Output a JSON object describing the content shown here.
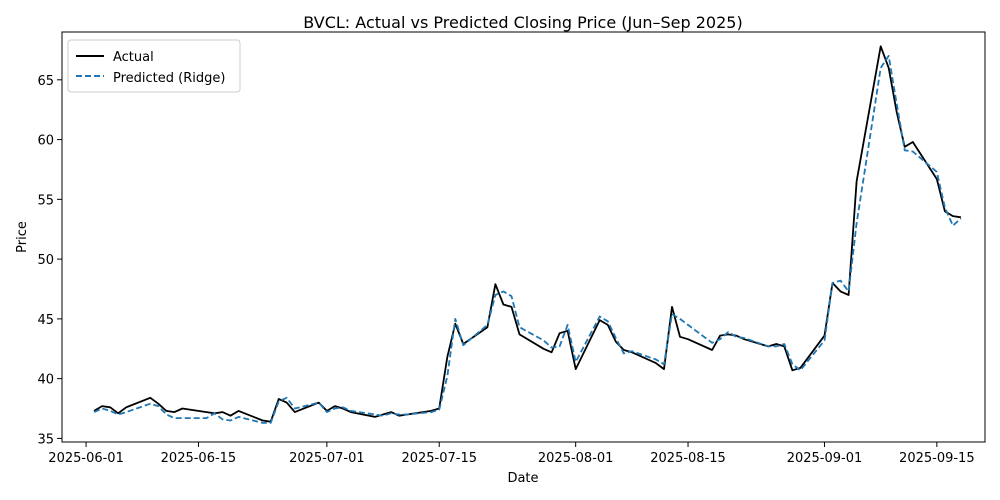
{
  "chart_data": {
    "type": "line",
    "title": "BVCL: Actual vs Predicted Closing Price (Jun–Sep 2025)",
    "xlabel": "Date",
    "ylabel": "Price",
    "ylim": [
      34.7,
      69.0
    ],
    "xlim": [
      "2025-05-29",
      "2025-09-21"
    ],
    "x_ticks": [
      "2025-06-01",
      "2025-06-15",
      "2025-07-01",
      "2025-07-15",
      "2025-08-01",
      "2025-08-15",
      "2025-09-01",
      "2025-09-15"
    ],
    "y_ticks": [
      35,
      40,
      45,
      50,
      55,
      60,
      65
    ],
    "grid": false,
    "legend_position": "top-left",
    "series": [
      {
        "name": "Actual",
        "color": "#000000",
        "style": "solid",
        "points": [
          [
            "2025-06-02",
            37.3
          ],
          [
            "2025-06-03",
            37.7
          ],
          [
            "2025-06-04",
            37.6
          ],
          [
            "2025-06-05",
            37.1
          ],
          [
            "2025-06-06",
            37.6
          ],
          [
            "2025-06-09",
            38.4
          ],
          [
            "2025-06-10",
            37.9
          ],
          [
            "2025-06-11",
            37.3
          ],
          [
            "2025-06-12",
            37.2
          ],
          [
            "2025-06-13",
            37.5
          ],
          [
            "2025-06-16",
            37.2
          ],
          [
            "2025-06-17",
            37.1
          ],
          [
            "2025-06-18",
            37.2
          ],
          [
            "2025-06-19",
            36.9
          ],
          [
            "2025-06-20",
            37.3
          ],
          [
            "2025-06-23",
            36.5
          ],
          [
            "2025-06-24",
            36.4
          ],
          [
            "2025-06-25",
            38.3
          ],
          [
            "2025-06-26",
            38.0
          ],
          [
            "2025-06-27",
            37.2
          ],
          [
            "2025-06-30",
            38.0
          ],
          [
            "2025-07-01",
            37.3
          ],
          [
            "2025-07-02",
            37.7
          ],
          [
            "2025-07-03",
            37.5
          ],
          [
            "2025-07-04",
            37.2
          ],
          [
            "2025-07-07",
            36.8
          ],
          [
            "2025-07-08",
            37.0
          ],
          [
            "2025-07-09",
            37.2
          ],
          [
            "2025-07-10",
            36.9
          ],
          [
            "2025-07-11",
            37.0
          ],
          [
            "2025-07-14",
            37.3
          ],
          [
            "2025-07-15",
            37.5
          ],
          [
            "2025-07-16",
            41.8
          ],
          [
            "2025-07-17",
            44.6
          ],
          [
            "2025-07-18",
            42.9
          ],
          [
            "2025-07-21",
            44.3
          ],
          [
            "2025-07-22",
            47.9
          ],
          [
            "2025-07-23",
            46.2
          ],
          [
            "2025-07-24",
            46.0
          ],
          [
            "2025-07-25",
            43.7
          ],
          [
            "2025-07-28",
            42.5
          ],
          [
            "2025-07-29",
            42.2
          ],
          [
            "2025-07-30",
            43.8
          ],
          [
            "2025-07-31",
            44.0
          ],
          [
            "2025-08-01",
            40.8
          ],
          [
            "2025-08-04",
            44.9
          ],
          [
            "2025-08-05",
            44.5
          ],
          [
            "2025-08-06",
            43.1
          ],
          [
            "2025-08-07",
            42.4
          ],
          [
            "2025-08-08",
            42.2
          ],
          [
            "2025-08-11",
            41.3
          ],
          [
            "2025-08-12",
            40.8
          ],
          [
            "2025-08-13",
            46.0
          ],
          [
            "2025-08-14",
            43.5
          ],
          [
            "2025-08-15",
            43.3
          ],
          [
            "2025-08-18",
            42.4
          ],
          [
            "2025-08-19",
            43.6
          ],
          [
            "2025-08-20",
            43.7
          ],
          [
            "2025-08-21",
            43.6
          ],
          [
            "2025-08-22",
            43.3
          ],
          [
            "2025-08-25",
            42.7
          ],
          [
            "2025-08-26",
            42.9
          ],
          [
            "2025-08-27",
            42.7
          ],
          [
            "2025-08-28",
            40.7
          ],
          [
            "2025-08-29",
            40.9
          ],
          [
            "2025-09-01",
            43.6
          ],
          [
            "2025-09-02",
            48.0
          ],
          [
            "2025-09-03",
            47.3
          ],
          [
            "2025-09-04",
            47.0
          ],
          [
            "2025-09-05",
            56.5
          ],
          [
            "2025-09-08",
            67.8
          ],
          [
            "2025-09-09",
            66.0
          ],
          [
            "2025-09-10",
            62.3
          ],
          [
            "2025-09-11",
            59.4
          ],
          [
            "2025-09-12",
            59.8
          ],
          [
            "2025-09-15",
            56.7
          ],
          [
            "2025-09-16",
            54.0
          ],
          [
            "2025-09-17",
            53.6
          ],
          [
            "2025-09-18",
            53.5
          ]
        ]
      },
      {
        "name": "Predicted (Ridge)",
        "color": "#1f77b4",
        "style": "dashed",
        "points": [
          [
            "2025-06-02",
            37.2
          ],
          [
            "2025-06-03",
            37.5
          ],
          [
            "2025-06-04",
            37.3
          ],
          [
            "2025-06-05",
            37.0
          ],
          [
            "2025-06-06",
            37.2
          ],
          [
            "2025-06-09",
            37.9
          ],
          [
            "2025-06-10",
            37.7
          ],
          [
            "2025-06-11",
            37.0
          ],
          [
            "2025-06-12",
            36.7
          ],
          [
            "2025-06-13",
            36.7
          ],
          [
            "2025-06-16",
            36.7
          ],
          [
            "2025-06-17",
            37.1
          ],
          [
            "2025-06-18",
            36.6
          ],
          [
            "2025-06-19",
            36.5
          ],
          [
            "2025-06-20",
            36.8
          ],
          [
            "2025-06-23",
            36.3
          ],
          [
            "2025-06-24",
            36.3
          ],
          [
            "2025-06-25",
            38.1
          ],
          [
            "2025-06-26",
            38.4
          ],
          [
            "2025-06-27",
            37.5
          ],
          [
            "2025-06-30",
            38.0
          ],
          [
            "2025-07-01",
            37.2
          ],
          [
            "2025-07-02",
            37.5
          ],
          [
            "2025-07-03",
            37.6
          ],
          [
            "2025-07-04",
            37.3
          ],
          [
            "2025-07-07",
            37.0
          ],
          [
            "2025-07-08",
            36.9
          ],
          [
            "2025-07-09",
            37.1
          ],
          [
            "2025-07-10",
            37.0
          ],
          [
            "2025-07-11",
            37.0
          ],
          [
            "2025-07-14",
            37.2
          ],
          [
            "2025-07-15",
            37.4
          ],
          [
            "2025-07-16",
            40.2
          ],
          [
            "2025-07-17",
            45.0
          ],
          [
            "2025-07-18",
            42.8
          ],
          [
            "2025-07-21",
            44.5
          ],
          [
            "2025-07-22",
            47.0
          ],
          [
            "2025-07-23",
            47.3
          ],
          [
            "2025-07-24",
            46.9
          ],
          [
            "2025-07-25",
            44.3
          ],
          [
            "2025-07-28",
            43.2
          ],
          [
            "2025-07-29",
            42.6
          ],
          [
            "2025-07-30",
            42.7
          ],
          [
            "2025-07-31",
            44.5
          ],
          [
            "2025-08-01",
            41.4
          ],
          [
            "2025-08-04",
            45.2
          ],
          [
            "2025-08-05",
            44.8
          ],
          [
            "2025-08-06",
            43.4
          ],
          [
            "2025-08-07",
            42.1
          ],
          [
            "2025-08-08",
            42.3
          ],
          [
            "2025-08-11",
            41.6
          ],
          [
            "2025-08-12",
            41.2
          ],
          [
            "2025-08-13",
            45.4
          ],
          [
            "2025-08-14",
            45.0
          ],
          [
            "2025-08-15",
            44.5
          ],
          [
            "2025-08-18",
            43.0
          ],
          [
            "2025-08-19",
            43.3
          ],
          [
            "2025-08-20",
            43.9
          ],
          [
            "2025-08-21",
            43.5
          ],
          [
            "2025-08-22",
            43.4
          ],
          [
            "2025-08-25",
            42.7
          ],
          [
            "2025-08-26",
            42.7
          ],
          [
            "2025-08-27",
            42.9
          ],
          [
            "2025-08-28",
            41.2
          ],
          [
            "2025-08-29",
            40.7
          ],
          [
            "2025-09-01",
            43.2
          ],
          [
            "2025-09-02",
            48.0
          ],
          [
            "2025-09-03",
            48.2
          ],
          [
            "2025-09-04",
            47.3
          ],
          [
            "2025-09-05",
            53.0
          ],
          [
            "2025-09-08",
            66.0
          ],
          [
            "2025-09-09",
            67.0
          ],
          [
            "2025-09-10",
            63.0
          ],
          [
            "2025-09-11",
            59.1
          ],
          [
            "2025-09-12",
            59.0
          ],
          [
            "2025-09-15",
            57.3
          ],
          [
            "2025-09-16",
            54.3
          ],
          [
            "2025-09-17",
            52.8
          ],
          [
            "2025-09-18",
            53.4
          ]
        ]
      }
    ]
  }
}
